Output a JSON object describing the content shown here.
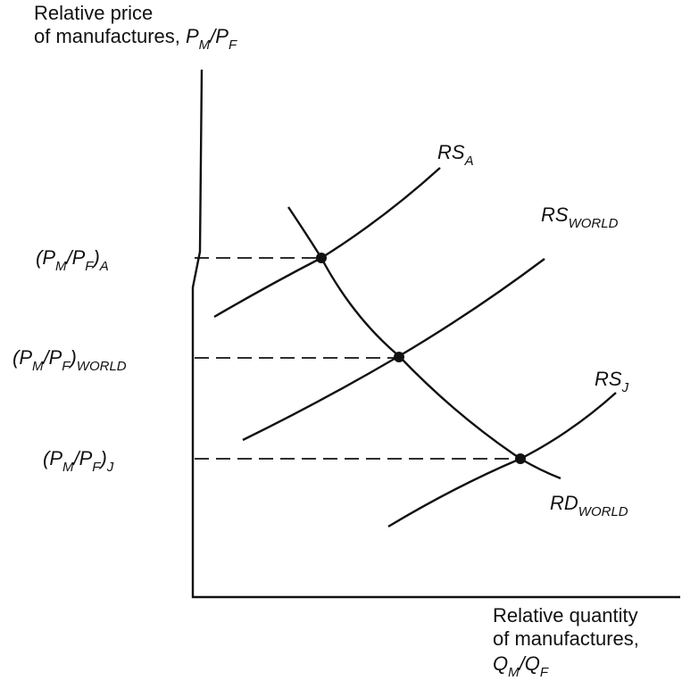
{
  "y_axis_label": {
    "lines": [
      [
        {
          "text": "Relative price"
        }
      ],
      [
        {
          "text": "of manufactures, "
        },
        {
          "text": "P",
          "style": "italic"
        },
        {
          "text": "M",
          "style": "sub"
        },
        {
          "text": "/P",
          "style": "italic"
        },
        {
          "text": "F",
          "style": "sub"
        }
      ]
    ]
  },
  "x_axis_label": {
    "lines": [
      [
        {
          "text": "Relative quantity"
        }
      ],
      [
        {
          "text": "of manufactures,"
        }
      ],
      [
        {
          "text": "Q",
          "style": "italic"
        },
        {
          "text": "M",
          "style": "sub"
        },
        {
          "text": "/Q",
          "style": "italic"
        },
        {
          "text": "F",
          "style": "sub"
        }
      ]
    ]
  },
  "curves": [
    {
      "label": [
        {
          "text": "RS",
          "style": "italic"
        },
        {
          "text": "A",
          "style": "sub"
        }
      ]
    },
    {
      "label": [
        {
          "text": "RS",
          "style": "italic"
        },
        {
          "text": "WORLD",
          "style": "sub"
        }
      ]
    },
    {
      "label": [
        {
          "text": "RS",
          "style": "italic"
        },
        {
          "text": "J",
          "style": "sub"
        }
      ]
    },
    {
      "label": [
        {
          "text": "RD",
          "style": "italic"
        },
        {
          "text": "WORLD",
          "style": "sub"
        }
      ]
    }
  ],
  "price_levels": [
    {
      "label": [
        {
          "text": "(P",
          "style": "italic"
        },
        {
          "text": "M",
          "style": "sub"
        },
        {
          "text": "/P",
          "style": "italic"
        },
        {
          "text": "F",
          "style": "sub"
        },
        {
          "text": ")",
          "style": "italic"
        },
        {
          "text": "A",
          "style": "sub"
        }
      ]
    },
    {
      "label": [
        {
          "text": "(P",
          "style": "italic"
        },
        {
          "text": "M",
          "style": "sub"
        },
        {
          "text": "/P",
          "style": "italic"
        },
        {
          "text": "F",
          "style": "sub"
        },
        {
          "text": ")",
          "style": "italic"
        },
        {
          "text": "WORLD",
          "style": "sub"
        }
      ]
    },
    {
      "label": [
        {
          "text": "(P",
          "style": "italic"
        },
        {
          "text": "M",
          "style": "sub"
        },
        {
          "text": "/P",
          "style": "italic"
        },
        {
          "text": "F",
          "style": "sub"
        },
        {
          "text": ")",
          "style": "italic"
        },
        {
          "text": "J",
          "style": "sub"
        }
      ]
    }
  ]
}
